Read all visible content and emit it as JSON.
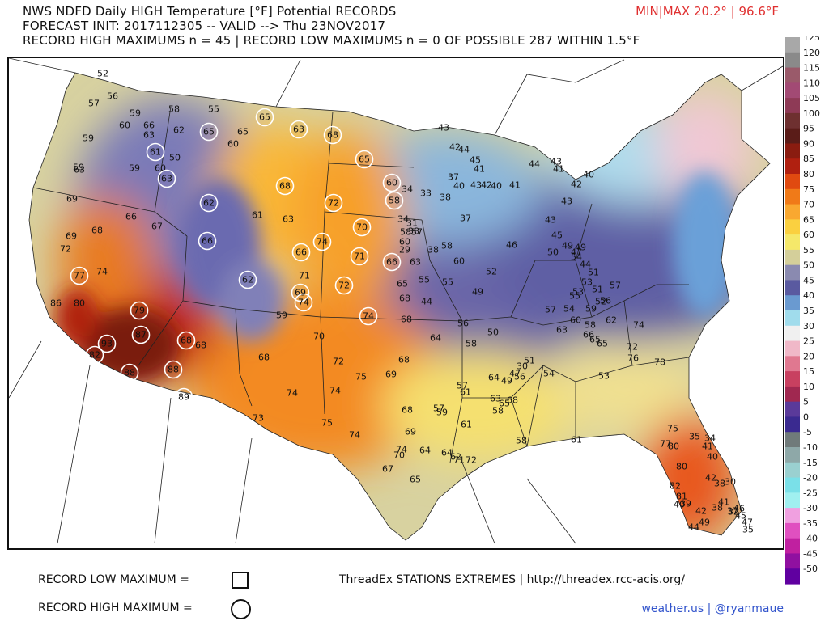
{
  "header": {
    "line1": "NWS NDFD Daily HIGH Temperature [°F] Potential RECORDS",
    "line2": "FORECAST INIT: 2017112305 -- VALID --> Thu 23NOV2017",
    "line3": "RECORD HIGH MAXIMUMS n = 45 | RECORD LOW MAXIMUMS n = 0 OF POSSIBLE 287 WITHIN 1.5°F",
    "minmax": "MIN|MAX 20.2° | 96.6°F"
  },
  "legend": {
    "record_low_label": "RECORD LOW MAXIMUM =",
    "record_high_label": "RECORD HIGH MAXIMUM =",
    "threadex": "ThreadEx STATIONS EXTREMES | http://threadex.rcc-acis.org/",
    "credit": "weather.us | @ryanmaue"
  },
  "colorbar": {
    "ticks": [
      125,
      120,
      115,
      110,
      105,
      100,
      95,
      90,
      85,
      80,
      75,
      70,
      65,
      60,
      55,
      50,
      45,
      40,
      35,
      30,
      25,
      20,
      15,
      10,
      5,
      0,
      -5,
      -10,
      -15,
      -20,
      -25,
      -30,
      -35,
      -40,
      -45,
      -50
    ],
    "colors": {
      "125": "#a8a8a8",
      "120": "#8a8a8a",
      "115": "#9a5a6a",
      "110": "#a24a74",
      "105": "#8e3a56",
      "100": "#6e3030",
      "95": "#5a1c18",
      "90": "#8a1c10",
      "85": "#b02010",
      "80": "#e04a10",
      "75": "#f07a18",
      "70": "#f9a830",
      "65": "#fad040",
      "60": "#f5e86a",
      "55": "#d4cf9a",
      "50": "#8a8ab0",
      "45": "#5a5aa0",
      "40": "#6a9ad0",
      "35": "#a0dcec",
      "30": "#f0f0f0",
      "25": "#f0b8c8",
      "20": "#e07890",
      "15": "#c84060",
      "10": "#a02850",
      "5": "#5a3a9a",
      "0": "#3a2a90",
      "-5": "#707a7a",
      "-10": "#8ea8a8",
      "-15": "#9ad0d0",
      "-20": "#7ae0e8",
      "-25": "#a0f0f0",
      "-30": "#f0a0e0",
      "-35": "#e050c0",
      "-40": "#c020a0",
      "-45": "#9010a0",
      "-50": "#6000a0"
    }
  },
  "stations": [
    {
      "v": "52",
      "rec": false
    },
    {
      "v": "57",
      "rec": false
    },
    {
      "v": "56",
      "rec": false
    },
    {
      "v": "59",
      "rec": false
    },
    {
      "v": "58",
      "rec": false
    },
    {
      "v": "55",
      "rec": false
    },
    {
      "v": "60",
      "rec": false
    },
    {
      "v": "66",
      "rec": false
    },
    {
      "v": "59",
      "rec": false
    },
    {
      "v": "63",
      "rec": false
    },
    {
      "v": "62",
      "rec": false
    },
    {
      "v": "59",
      "rec": false
    },
    {
      "v": "65",
      "rec": true
    },
    {
      "v": "63",
      "rec": true
    },
    {
      "v": "65",
      "rec": false
    },
    {
      "v": "60",
      "rec": false
    },
    {
      "v": "68",
      "rec": true
    },
    {
      "v": "61",
      "rec": true
    },
    {
      "v": "50",
      "rec": false
    },
    {
      "v": "59",
      "rec": false
    },
    {
      "v": "60",
      "rec": false
    },
    {
      "v": "63",
      "rec": true
    },
    {
      "v": "65",
      "rec": true
    },
    {
      "v": "68",
      "rec": true
    },
    {
      "v": "65",
      "rec": true
    },
    {
      "v": "63",
      "rec": false
    },
    {
      "v": "69",
      "rec": false
    },
    {
      "v": "66",
      "rec": false
    },
    {
      "v": "67",
      "rec": false
    },
    {
      "v": "62",
      "rec": true
    },
    {
      "v": "61",
      "rec": false
    },
    {
      "v": "63",
      "rec": false
    },
    {
      "v": "72",
      "rec": true
    },
    {
      "v": "60",
      "rec": true
    },
    {
      "v": "58",
      "rec": true
    },
    {
      "v": "69",
      "rec": false
    },
    {
      "v": "72",
      "rec": false
    },
    {
      "v": "68",
      "rec": false
    },
    {
      "v": "66",
      "rec": true
    },
    {
      "v": "66",
      "rec": true
    },
    {
      "v": "74",
      "rec": true
    },
    {
      "v": "70",
      "rec": true
    },
    {
      "v": "60",
      "rec": false
    },
    {
      "v": "71",
      "rec": true
    },
    {
      "v": "66",
      "rec": true
    },
    {
      "v": "63",
      "rec": false
    },
    {
      "v": "77",
      "rec": true
    },
    {
      "v": "74",
      "rec": false
    },
    {
      "v": "62",
      "rec": true
    },
    {
      "v": "71",
      "rec": false
    },
    {
      "v": "72",
      "rec": true
    },
    {
      "v": "65",
      "rec": false
    },
    {
      "v": "69",
      "rec": true
    },
    {
      "v": "74",
      "rec": true
    },
    {
      "v": "68",
      "rec": false
    },
    {
      "v": "86",
      "rec": false
    },
    {
      "v": "80",
      "rec": false
    },
    {
      "v": "79",
      "rec": true
    },
    {
      "v": "59",
      "rec": false
    },
    {
      "v": "74",
      "rec": true
    },
    {
      "v": "68",
      "rec": false
    },
    {
      "v": "87",
      "rec": true
    },
    {
      "v": "93",
      "rec": true
    },
    {
      "v": "68",
      "rec": true
    },
    {
      "v": "68",
      "rec": false
    },
    {
      "v": "70",
      "rec": false
    },
    {
      "v": "68",
      "rec": false
    },
    {
      "v": "72",
      "rec": false
    },
    {
      "v": "68",
      "rec": false
    },
    {
      "v": "82",
      "rec": true
    },
    {
      "v": "88",
      "rec": true
    },
    {
      "v": "88",
      "rec": true
    },
    {
      "v": "89",
      "rec": true
    },
    {
      "v": "75",
      "rec": false
    },
    {
      "v": "69",
      "rec": false
    },
    {
      "v": "74",
      "rec": false
    },
    {
      "v": "74",
      "rec": false
    },
    {
      "v": "68",
      "rec": false
    },
    {
      "v": "73",
      "rec": false
    },
    {
      "v": "75",
      "rec": false
    },
    {
      "v": "74",
      "rec": false
    },
    {
      "v": "69",
      "rec": false
    },
    {
      "v": "74",
      "rec": false
    },
    {
      "v": "70",
      "rec": false
    },
    {
      "v": "64",
      "rec": false
    },
    {
      "v": "71",
      "rec": false
    },
    {
      "v": "72",
      "rec": false
    },
    {
      "v": "67",
      "rec": false
    },
    {
      "v": "65",
      "rec": false
    },
    {
      "v": "64",
      "rec": false
    },
    {
      "v": "62",
      "rec": false
    },
    {
      "v": "63",
      "rec": false
    },
    {
      "v": "61",
      "rec": false
    },
    {
      "v": "61",
      "rec": false
    },
    {
      "v": "59",
      "rec": false
    },
    {
      "v": "57",
      "rec": false
    },
    {
      "v": "58",
      "rec": false
    },
    {
      "v": "56",
      "rec": false
    },
    {
      "v": "64",
      "rec": false
    },
    {
      "v": "64",
      "rec": false
    },
    {
      "v": "58",
      "rec": false
    },
    {
      "v": "68",
      "rec": false
    },
    {
      "v": "65",
      "rec": false
    },
    {
      "v": "58",
      "rec": false
    },
    {
      "v": "61",
      "rec": false
    },
    {
      "v": "53",
      "rec": false
    },
    {
      "v": "54",
      "rec": false
    },
    {
      "v": "56",
      "rec": false
    },
    {
      "v": "57",
      "rec": false
    },
    {
      "v": "55",
      "rec": false
    },
    {
      "v": "49",
      "rec": false
    },
    {
      "v": "50",
      "rec": false
    },
    {
      "v": "51",
      "rec": false
    },
    {
      "v": "57",
      "rec": false
    },
    {
      "v": "49",
      "rec": false
    },
    {
      "v": "47",
      "rec": false
    },
    {
      "v": "55",
      "rec": false
    },
    {
      "v": "46",
      "rec": false
    },
    {
      "v": "52",
      "rec": false
    },
    {
      "v": "58",
      "rec": false
    },
    {
      "v": "60",
      "rec": false
    },
    {
      "v": "57",
      "rec": false
    },
    {
      "v": "58",
      "rec": false
    },
    {
      "v": "38",
      "rec": false
    },
    {
      "v": "44",
      "rec": false
    },
    {
      "v": "34",
      "rec": false
    },
    {
      "v": "38",
      "rec": false
    },
    {
      "v": "29",
      "rec": false
    },
    {
      "v": "30",
      "rec": false
    },
    {
      "v": "31",
      "rec": false
    },
    {
      "v": "34",
      "rec": false
    },
    {
      "v": "33",
      "rec": false
    },
    {
      "v": "38",
      "rec": false
    },
    {
      "v": "37",
      "rec": false
    },
    {
      "v": "40",
      "rec": false
    },
    {
      "v": "37",
      "rec": false
    },
    {
      "v": "41",
      "rec": false
    },
    {
      "v": "43",
      "rec": false
    },
    {
      "v": "42",
      "rec": false
    },
    {
      "v": "44",
      "rec": false
    },
    {
      "v": "45",
      "rec": false
    },
    {
      "v": "43",
      "rec": false
    },
    {
      "v": "42",
      "rec": false
    },
    {
      "v": "40",
      "rec": false
    },
    {
      "v": "41",
      "rec": false
    },
    {
      "v": "44",
      "rec": false
    },
    {
      "v": "43",
      "rec": false
    },
    {
      "v": "41",
      "rec": false
    },
    {
      "v": "40",
      "rec": false
    },
    {
      "v": "42",
      "rec": false
    },
    {
      "v": "43",
      "rec": false
    },
    {
      "v": "43",
      "rec": false
    },
    {
      "v": "45",
      "rec": false
    },
    {
      "v": "49",
      "rec": false
    },
    {
      "v": "50",
      "rec": false
    },
    {
      "v": "49",
      "rec": false
    },
    {
      "v": "47",
      "rec": false
    },
    {
      "v": "44",
      "rec": false
    },
    {
      "v": "51",
      "rec": false
    },
    {
      "v": "53",
      "rec": false
    },
    {
      "v": "51",
      "rec": false
    },
    {
      "v": "52",
      "rec": false
    },
    {
      "v": "54",
      "rec": false
    },
    {
      "v": "53",
      "rec": false
    },
    {
      "v": "55",
      "rec": false
    },
    {
      "v": "54",
      "rec": false
    },
    {
      "v": "57",
      "rec": false
    },
    {
      "v": "56",
      "rec": false
    },
    {
      "v": "59",
      "rec": false
    },
    {
      "v": "58",
      "rec": false
    },
    {
      "v": "60",
      "rec": false
    },
    {
      "v": "63",
      "rec": false
    },
    {
      "v": "62",
      "rec": false
    },
    {
      "v": "65",
      "rec": false
    },
    {
      "v": "66",
      "rec": false
    },
    {
      "v": "65",
      "rec": false
    },
    {
      "v": "72",
      "rec": false
    },
    {
      "v": "74",
      "rec": false
    },
    {
      "v": "76",
      "rec": false
    },
    {
      "v": "78",
      "rec": false
    },
    {
      "v": "75",
      "rec": false
    },
    {
      "v": "77",
      "rec": false
    },
    {
      "v": "80",
      "rec": false
    },
    {
      "v": "80",
      "rec": false
    },
    {
      "v": "82",
      "rec": false
    },
    {
      "v": "81",
      "rec": false
    },
    {
      "v": "40",
      "rec": false
    },
    {
      "v": "39",
      "rec": false
    },
    {
      "v": "41",
      "rec": false
    },
    {
      "v": "40",
      "rec": false
    },
    {
      "v": "42",
      "rec": false
    },
    {
      "v": "41",
      "rec": false
    },
    {
      "v": "38",
      "rec": false
    },
    {
      "v": "34",
      "rec": false
    },
    {
      "v": "35",
      "rec": false
    },
    {
      "v": "38",
      "rec": false
    },
    {
      "v": "37",
      "rec": false
    },
    {
      "v": "42",
      "rec": false
    },
    {
      "v": "44",
      "rec": false
    },
    {
      "v": "46",
      "rec": false
    },
    {
      "v": "45",
      "rec": false
    },
    {
      "v": "47",
      "rec": false
    },
    {
      "v": "49",
      "rec": false
    },
    {
      "v": "30",
      "rec": false
    },
    {
      "v": "32",
      "rec": false
    },
    {
      "v": "35",
      "rec": false
    },
    {
      "v": "35",
      "rec": false
    },
    {
      "v": "39",
      "rec": false
    },
    {
      "v": "38",
      "rec": false
    },
    {
      "v": "41",
      "rec": false
    },
    {
      "v": "43",
      "rec": false
    },
    {
      "v": "42",
      "rec": false
    }
  ]
}
